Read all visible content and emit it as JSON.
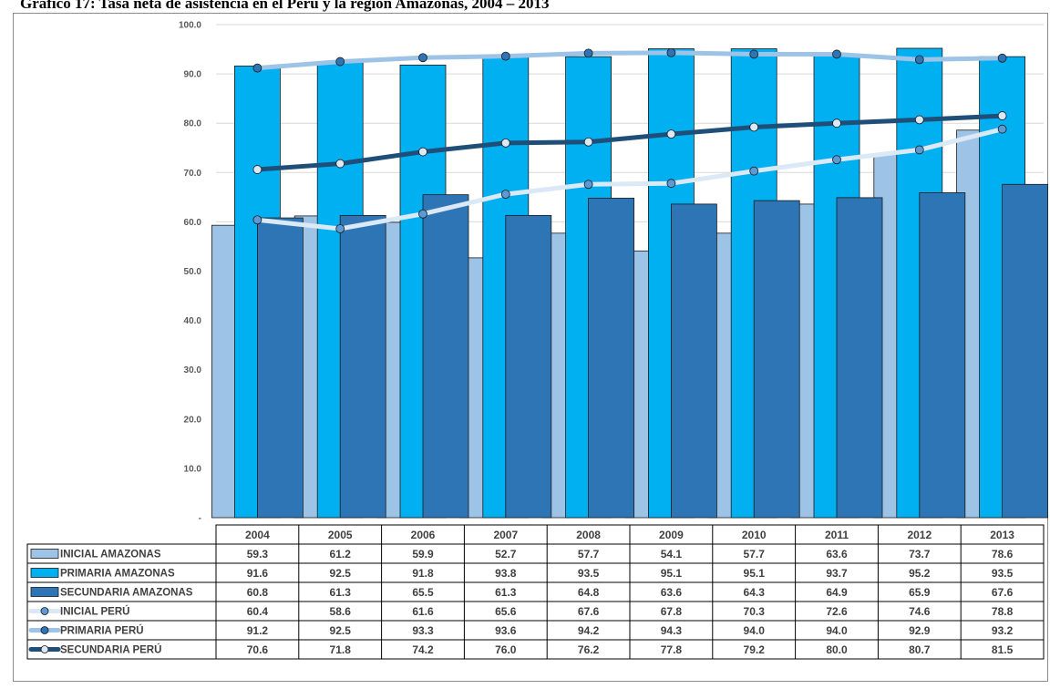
{
  "title": "Gráfico 17: Tasa neta de asistencia en el Perú y la región Amazonas, 2004 – 2013",
  "chart_data": {
    "type": "bar",
    "categories": [
      "2004",
      "2005",
      "2006",
      "2007",
      "2008",
      "2009",
      "2010",
      "2011",
      "2012",
      "2013"
    ],
    "ylim": [
      0,
      100
    ],
    "yticks": [
      "-",
      "10.0",
      "20.0",
      "30.0",
      "40.0",
      "50.0",
      "60.0",
      "70.0",
      "80.0",
      "90.0",
      "100.0"
    ],
    "grid": true,
    "legend": "data-table",
    "series": [
      {
        "name": "INICIAL AMAZONAS",
        "kind": "bar",
        "color": "#9dc3e6",
        "values": [
          59.3,
          61.2,
          59.9,
          52.7,
          57.7,
          54.1,
          57.7,
          63.6,
          73.7,
          78.6
        ]
      },
      {
        "name": "PRIMARIA AMAZONAS",
        "kind": "bar",
        "color": "#00b0f0",
        "values": [
          91.6,
          92.5,
          91.8,
          93.8,
          93.5,
          95.1,
          95.1,
          93.7,
          95.2,
          93.5
        ]
      },
      {
        "name": "SECUNDARIA AMAZONAS",
        "kind": "bar",
        "color": "#2e75b6",
        "values": [
          60.8,
          61.3,
          65.5,
          61.3,
          64.8,
          63.6,
          64.3,
          64.9,
          65.9,
          67.6
        ]
      },
      {
        "name": "INICIAL PERÚ",
        "kind": "line",
        "color": "#dbe8f6",
        "marker": "#5b9bd5",
        "values": [
          60.4,
          58.6,
          61.6,
          65.6,
          67.6,
          67.8,
          70.3,
          72.6,
          74.6,
          78.8
        ]
      },
      {
        "name": "PRIMARIA PERÚ",
        "kind": "line",
        "color": "#9dc3e6",
        "marker": "#2e75b6",
        "values": [
          91.2,
          92.5,
          93.3,
          93.6,
          94.2,
          94.3,
          94.0,
          94.0,
          92.9,
          93.2
        ]
      },
      {
        "name": "SECUNDARIA PERÚ",
        "kind": "line",
        "color": "#1f4e79",
        "marker": "#dbe8f6",
        "values": [
          70.6,
          71.8,
          74.2,
          76.0,
          76.2,
          77.8,
          79.2,
          80.0,
          80.7,
          81.5
        ]
      }
    ],
    "table_values": {
      "INICIAL AMAZONAS": [
        "59.3",
        "61.2",
        "59.9",
        "52.7",
        "57.7",
        "54.1",
        "57.7",
        "63.6",
        "73.7",
        "78.6"
      ],
      "PRIMARIA AMAZONAS": [
        "91.6",
        "92.5",
        "91.8",
        "93.8",
        "93.5",
        "95.1",
        "95.1",
        "93.7",
        "95.2",
        "93.5"
      ],
      "SECUNDARIA AMAZONAS": [
        "60.8",
        "61.3",
        "65.5",
        "61.3",
        "64.8",
        "63.6",
        "64.3",
        "64.9",
        "65.9",
        "67.6"
      ],
      "INICIAL PERÚ": [
        "60.4",
        "58.6",
        "61.6",
        "65.6",
        "67.6",
        "67.8",
        "70.3",
        "72.6",
        "74.6",
        "78.8"
      ],
      "PRIMARIA PERÚ": [
        "91.2",
        "92.5",
        "93.3",
        "93.6",
        "94.2",
        "94.3",
        "94.0",
        "94.0",
        "92.9",
        "93.2"
      ],
      "SECUNDARIA PERÚ": [
        "70.6",
        "71.8",
        "74.2",
        "76.0",
        "76.2",
        "77.8",
        "79.2",
        "80.0",
        "80.7",
        "81.5"
      ]
    }
  }
}
